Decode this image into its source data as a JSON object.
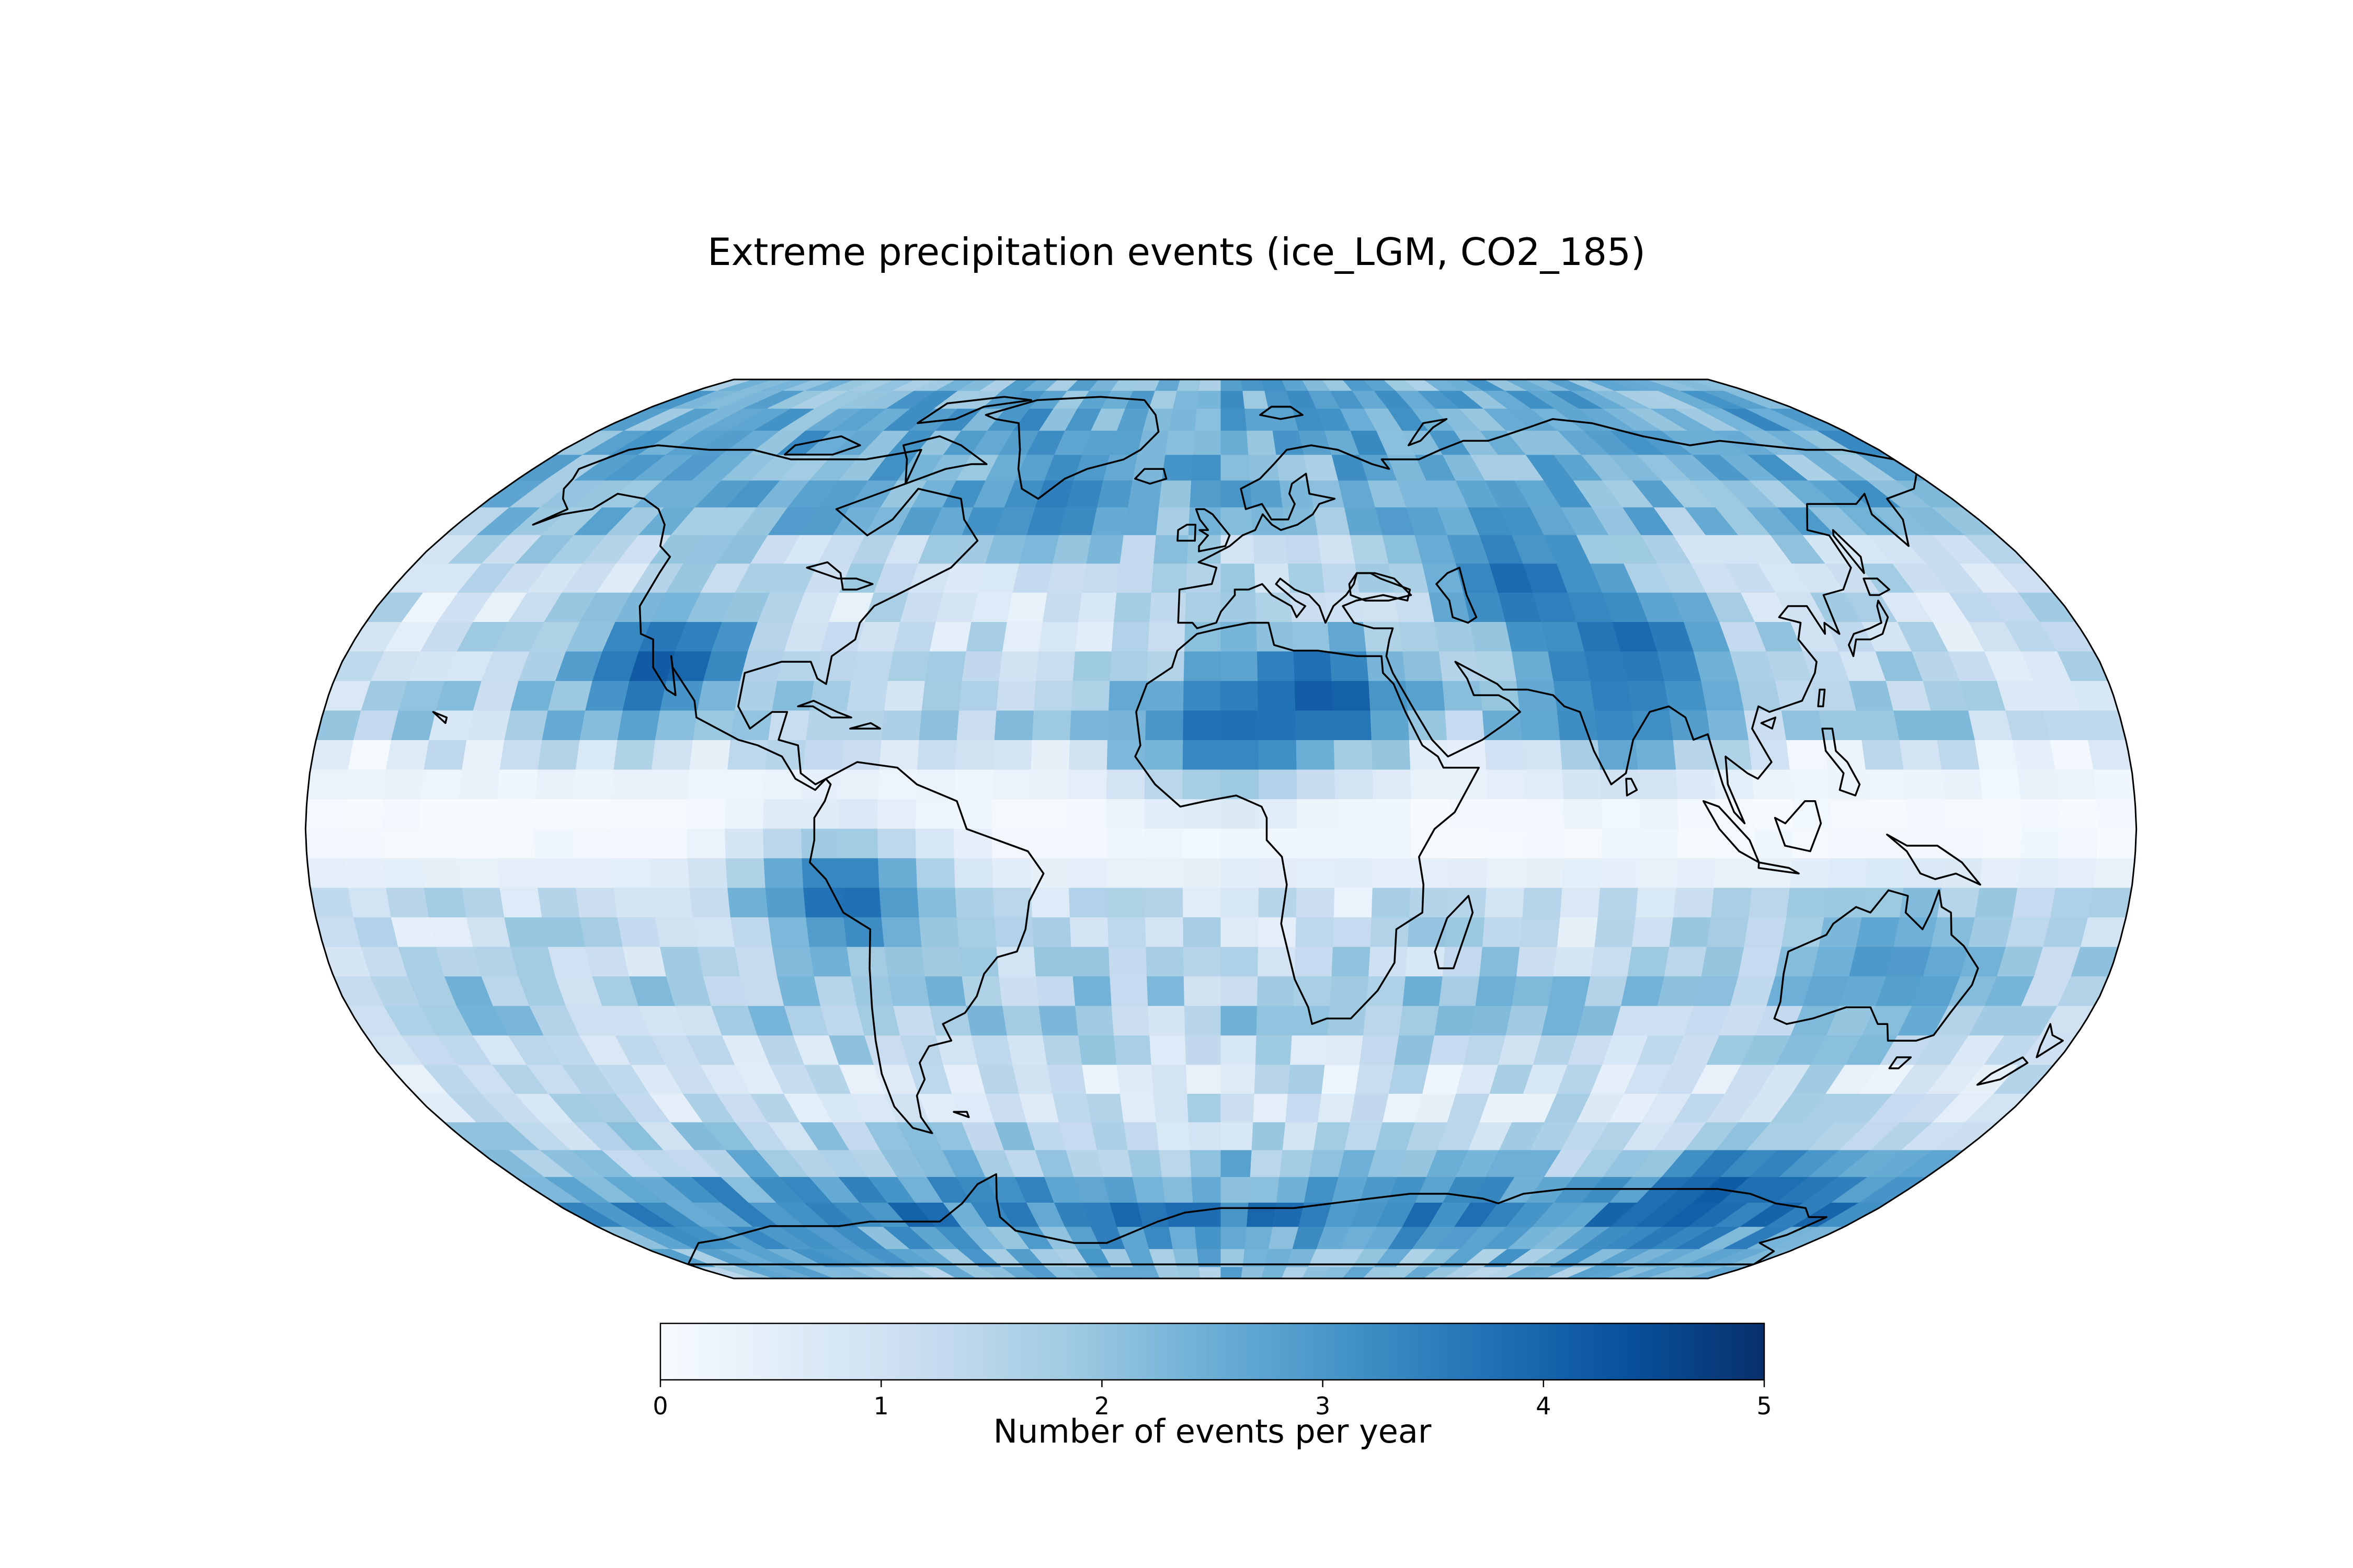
{
  "title": "Extreme precipitation events (ice_LGM, CO2_185)",
  "colorbar": {
    "label": "Number of events per year",
    "min": 0,
    "max": 5,
    "ticks": [
      "0",
      "1",
      "2",
      "3",
      "4",
      "5"
    ],
    "colormap": "Blues",
    "colors": [
      "#f7fbff",
      "#deebf7",
      "#c6dbef",
      "#9ecae1",
      "#6baed6",
      "#4292c6",
      "#2171b5",
      "#08519c",
      "#08306b"
    ]
  },
  "map": {
    "projection": "Robinson",
    "coastlines": true,
    "coastline_color": "#000000",
    "field_name": "Number of events per year",
    "latitude_bands": [
      {
        "lat": 84,
        "value": 2.4
      },
      {
        "lat": 78,
        "value": 2.6
      },
      {
        "lat": 72,
        "value": 2.7
      },
      {
        "lat": 66,
        "value": 2.4
      },
      {
        "lat": 60,
        "value": 2.5
      },
      {
        "lat": 54,
        "value": 2.0
      },
      {
        "lat": 48,
        "value": 1.2
      },
      {
        "lat": 42,
        "value": 1.0
      },
      {
        "lat": 36,
        "value": 1.1
      },
      {
        "lat": 30,
        "value": 1.3
      },
      {
        "lat": 24,
        "value": 1.4
      },
      {
        "lat": 18,
        "value": 1.5
      },
      {
        "lat": 12,
        "value": 0.6
      },
      {
        "lat": 6,
        "value": 0.1
      },
      {
        "lat": 0,
        "value": 0.05
      },
      {
        "lat": -6,
        "value": 0.2
      },
      {
        "lat": -12,
        "value": 1.0
      },
      {
        "lat": -18,
        "value": 1.2
      },
      {
        "lat": -24,
        "value": 1.4
      },
      {
        "lat": -30,
        "value": 1.8
      },
      {
        "lat": -36,
        "value": 1.6
      },
      {
        "lat": -42,
        "value": 1.2
      },
      {
        "lat": -48,
        "value": 0.8
      },
      {
        "lat": -54,
        "value": 1.3
      },
      {
        "lat": -60,
        "value": 1.9
      },
      {
        "lat": -66,
        "value": 2.8
      },
      {
        "lat": -72,
        "value": 3.3
      },
      {
        "lat": -78,
        "value": 2.6
      },
      {
        "lat": -84,
        "value": 2.2
      }
    ],
    "hotspots": [
      {
        "region": "Western North America",
        "lon": -115,
        "lat": 30,
        "value": 4.2
      },
      {
        "region": "North Atlantic",
        "lon": -40,
        "lat": 60,
        "value": 3.5
      },
      {
        "region": "Sahara",
        "lon": 20,
        "lat": 24,
        "value": 4.3
      },
      {
        "region": "Northern Africa",
        "lon": 0,
        "lat": 18,
        "value": 3.8
      },
      {
        "region": "Central Asia",
        "lon": 65,
        "lat": 45,
        "value": 3.9
      },
      {
        "region": "Tibet",
        "lon": 85,
        "lat": 33,
        "value": 4.1
      },
      {
        "region": "India",
        "lon": 80,
        "lat": 22,
        "value": 3.5
      },
      {
        "region": "Peru",
        "lon": -75,
        "lat": -12,
        "value": 3.9
      },
      {
        "region": "South Pacific",
        "lon": 135,
        "lat": -24,
        "value": 3.0
      },
      {
        "region": "Southern Ocean",
        "lon": 130,
        "lat": -68,
        "value": 4.2
      }
    ]
  }
}
